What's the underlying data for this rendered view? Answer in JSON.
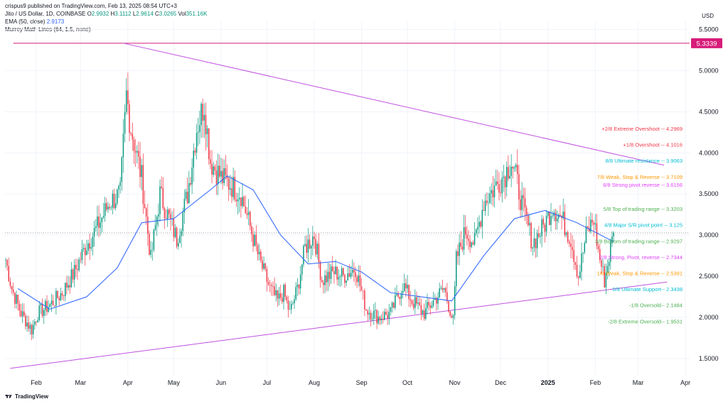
{
  "header": {
    "publisher": "crispus9 published on TradingView.com, Feb 13, 2025 08:54 UTC+3",
    "symbol": "Jito / US Dollar, 1D, COINBASE",
    "o_label": "O",
    "o_val": "2.9932",
    "h_label": "H",
    "h_val": "3.1112",
    "l_label": "L",
    "l_val": "2.9614",
    "c_label": "C",
    "c_val": "3.0265",
    "vol_label": "Vol",
    "vol_val": "351.16K",
    "ema_label": "EMA (50, close)",
    "ema_val": "2.9173",
    "murrey_label": "Murrey Math Lines (64, 1.5, none)"
  },
  "currency": "USD",
  "footer": {
    "brand": "TradingView"
  },
  "colors": {
    "up": "#089981",
    "down": "#f23645",
    "ema": "#2962ff",
    "trendline": "#c050e0",
    "resistance": "#d81b7a",
    "grid": "#f0f3fa"
  },
  "chart_data": {
    "type": "candlestick",
    "y_axis": {
      "ticks": [
        "1.5000",
        "2.0000",
        "2.5000",
        "3.0000",
        "3.5000",
        "4.0000",
        "4.5000",
        "5.0000",
        "5.5000"
      ],
      "ylim": [
        1.3,
        5.6
      ]
    },
    "x_axis": {
      "ticks": [
        "Feb",
        "Mar",
        "Apr",
        "May",
        "Jun",
        "Jul",
        "Aug",
        "Sep",
        "Oct",
        "Nov",
        "Dec",
        "2025",
        "Feb",
        "Mar",
        "Apr"
      ]
    },
    "horizontal_line": {
      "value": 5.3339,
      "label": "5.3339"
    },
    "current_price_line": 3.0265,
    "trendlines": [
      {
        "from": [
          "2024-03-29",
          5.3339
        ],
        "to": [
          "2025-03-18",
          3.85
        ]
      },
      {
        "from": [
          "2024-01-15",
          1.38
        ],
        "to": [
          "2025-03-20",
          2.43
        ]
      }
    ],
    "murrey_lines": [
      {
        "label": "+2/8 Extreme Overshoot -- ",
        "value": "4.2969",
        "color": "#f23645"
      },
      {
        "label": "+1/8 Overshoot -- ",
        "value": "4.1016",
        "color": "#f23645"
      },
      {
        "label": "8/8 Ultimate resistance -- ",
        "value": "3.9063",
        "color": "#00bcd4"
      },
      {
        "label": "7/8 Weak, Stop & Reverse -- ",
        "value": "3.7109",
        "color": "#ff9800"
      },
      {
        "label": "6/8 Strong pivot reverse -- ",
        "value": "3.6156",
        "color": "#e040fb"
      },
      {
        "label": "5/8 Top of trading range -- ",
        "value": "3.3203",
        "color": "#4caf50"
      },
      {
        "label": "4/8 Major S/R pivot point -- ",
        "value": "3.125",
        "color": "#00bcd4"
      },
      {
        "label": "3/8 Bottom of trading range -- ",
        "value": "2.9297",
        "color": "#4caf50"
      },
      {
        "label": "2/8 Strong, Pivot, reverse -- ",
        "value": "2.7344",
        "color": "#e040fb"
      },
      {
        "label": "1/8 Weak, Stop & Reverse -- ",
        "value": "2.5391",
        "color": "#ff9800"
      },
      {
        "label": "0/8 Ultimate Support-- ",
        "value": "2.3438",
        "color": "#00bcd4"
      },
      {
        "label": "-1/8 Oversold-- ",
        "value": "2.1484",
        "color": "#4caf50"
      },
      {
        "label": "-2/8 Extreme Oversold-- ",
        "value": "1.9531",
        "color": "#4caf50"
      }
    ],
    "anchors": [
      [
        "2024-01-12",
        2.7
      ],
      [
        "2024-01-16",
        2.35
      ],
      [
        "2024-01-22",
        2.05
      ],
      [
        "2024-01-29",
        1.85
      ],
      [
        "2024-02-02",
        2.05
      ],
      [
        "2024-02-10",
        2.15
      ],
      [
        "2024-02-18",
        2.3
      ],
      [
        "2024-02-26",
        2.55
      ],
      [
        "2024-03-04",
        2.85
      ],
      [
        "2024-03-12",
        3.1
      ],
      [
        "2024-03-20",
        3.4
      ],
      [
        "2024-03-27",
        3.5
      ],
      [
        "2024-03-31",
        4.7
      ],
      [
        "2024-04-03",
        4.3
      ],
      [
        "2024-04-10",
        3.7
      ],
      [
        "2024-04-16",
        2.7
      ],
      [
        "2024-04-22",
        3.5
      ],
      [
        "2024-04-28",
        3.2
      ],
      [
        "2024-05-03",
        2.95
      ],
      [
        "2024-05-10",
        3.5
      ],
      [
        "2024-05-16",
        4.3
      ],
      [
        "2024-05-21",
        4.6
      ],
      [
        "2024-05-25",
        3.9
      ],
      [
        "2024-06-01",
        3.7
      ],
      [
        "2024-06-08",
        3.6
      ],
      [
        "2024-06-14",
        3.5
      ],
      [
        "2024-06-20",
        3.1
      ],
      [
        "2024-06-26",
        2.7
      ],
      [
        "2024-07-03",
        2.35
      ],
      [
        "2024-07-08",
        2.2
      ],
      [
        "2024-07-12",
        2.3
      ],
      [
        "2024-07-16",
        2.05
      ],
      [
        "2024-07-21",
        2.35
      ],
      [
        "2024-07-26",
        2.85
      ],
      [
        "2024-08-01",
        3.0
      ],
      [
        "2024-08-06",
        2.45
      ],
      [
        "2024-08-14",
        2.55
      ],
      [
        "2024-08-20",
        2.5
      ],
      [
        "2024-08-28",
        2.6
      ],
      [
        "2024-09-04",
        2.1
      ],
      [
        "2024-09-12",
        2.0
      ],
      [
        "2024-09-20",
        2.05
      ],
      [
        "2024-09-28",
        2.4
      ],
      [
        "2024-10-04",
        2.2
      ],
      [
        "2024-10-12",
        2.05
      ],
      [
        "2024-10-18",
        2.2
      ],
      [
        "2024-10-25",
        2.35
      ],
      [
        "2024-10-31",
        1.95
      ],
      [
        "2024-11-02",
        2.7
      ],
      [
        "2024-11-08",
        3.05
      ],
      [
        "2024-11-14",
        2.9
      ],
      [
        "2024-11-20",
        3.4
      ],
      [
        "2024-11-26",
        3.55
      ],
      [
        "2024-12-04",
        3.75
      ],
      [
        "2024-12-08",
        3.9
      ],
      [
        "2024-12-11",
        3.7
      ],
      [
        "2024-12-16",
        3.3
      ],
      [
        "2024-12-22",
        2.9
      ],
      [
        "2024-12-29",
        3.1
      ],
      [
        "2025-01-04",
        3.35
      ],
      [
        "2025-01-10",
        3.2
      ],
      [
        "2025-01-16",
        2.95
      ],
      [
        "2025-01-21",
        2.5
      ],
      [
        "2025-01-26",
        3.0
      ],
      [
        "2025-01-31",
        3.2
      ],
      [
        "2025-02-03",
        2.8
      ],
      [
        "2025-02-07",
        2.45
      ],
      [
        "2025-02-13",
        3.03
      ]
    ],
    "ema": [
      [
        "2024-01-20",
        2.35
      ],
      [
        "2024-02-10",
        2.1
      ],
      [
        "2024-03-05",
        2.25
      ],
      [
        "2024-03-25",
        2.6
      ],
      [
        "2024-04-10",
        3.15
      ],
      [
        "2024-05-01",
        3.2
      ],
      [
        "2024-05-25",
        3.55
      ],
      [
        "2024-06-05",
        3.72
      ],
      [
        "2024-06-22",
        3.55
      ],
      [
        "2024-07-10",
        3.0
      ],
      [
        "2024-07-28",
        2.65
      ],
      [
        "2024-08-15",
        2.68
      ],
      [
        "2024-09-01",
        2.55
      ],
      [
        "2024-09-20",
        2.3
      ],
      [
        "2024-10-10",
        2.25
      ],
      [
        "2024-10-30",
        2.2
      ],
      [
        "2024-11-20",
        2.75
      ],
      [
        "2024-12-10",
        3.2
      ],
      [
        "2024-12-30",
        3.3
      ],
      [
        "2025-01-20",
        3.15
      ],
      [
        "2025-02-13",
        2.92
      ]
    ]
  }
}
